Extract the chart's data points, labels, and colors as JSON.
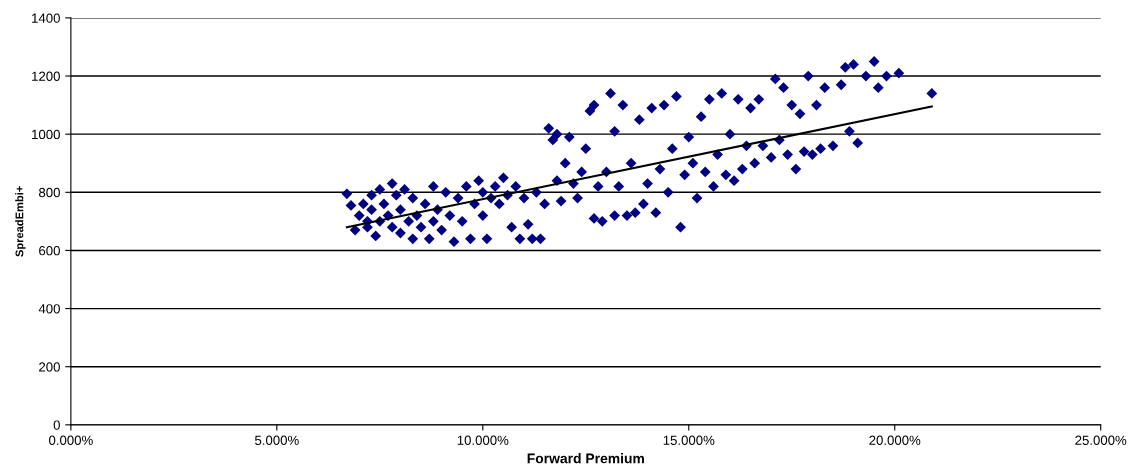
{
  "chart_data": {
    "type": "scatter",
    "xlabel": "Forward Premium",
    "ylabel": "SpreadEmbi+",
    "xlim": [
      0,
      0.25
    ],
    "xticks": [
      {
        "value": 0,
        "label": "0.000%"
      },
      {
        "value": 0.05,
        "label": "5.000%"
      },
      {
        "value": 0.1,
        "label": "10.000%"
      },
      {
        "value": 0.15,
        "label": "15.000%"
      },
      {
        "value": 0.2,
        "label": "20.000%"
      },
      {
        "value": 0.25,
        "label": "25.000%"
      }
    ],
    "ylim": [
      0,
      1400
    ],
    "yticks": [
      0,
      200,
      400,
      600,
      800,
      1000,
      1200,
      1400
    ],
    "grid": "y",
    "legend": false,
    "marker": "diamond",
    "series": [
      {
        "color": "#000080",
        "x": [
          0.067,
          0.068,
          0.069,
          0.07,
          0.071,
          0.072,
          0.072,
          0.073,
          0.073,
          0.074,
          0.075,
          0.075,
          0.076,
          0.077,
          0.078,
          0.078,
          0.079,
          0.08,
          0.08,
          0.081,
          0.082,
          0.083,
          0.083,
          0.084,
          0.085,
          0.086,
          0.087,
          0.088,
          0.088,
          0.089,
          0.09,
          0.091,
          0.092,
          0.093,
          0.094,
          0.095,
          0.096,
          0.097,
          0.098,
          0.099,
          0.1,
          0.1,
          0.101,
          0.102,
          0.103,
          0.104,
          0.105,
          0.106,
          0.107,
          0.108,
          0.109,
          0.11,
          0.111,
          0.112,
          0.113,
          0.114,
          0.115,
          0.116,
          0.117,
          0.118,
          0.118,
          0.119,
          0.12,
          0.121,
          0.122,
          0.123,
          0.124,
          0.125,
          0.126,
          0.127,
          0.127,
          0.128,
          0.129,
          0.13,
          0.131,
          0.132,
          0.132,
          0.133,
          0.134,
          0.135,
          0.136,
          0.137,
          0.138,
          0.139,
          0.14,
          0.141,
          0.142,
          0.143,
          0.144,
          0.145,
          0.146,
          0.147,
          0.148,
          0.149,
          0.15,
          0.151,
          0.152,
          0.153,
          0.154,
          0.155,
          0.156,
          0.157,
          0.158,
          0.159,
          0.16,
          0.161,
          0.162,
          0.163,
          0.164,
          0.165,
          0.166,
          0.167,
          0.168,
          0.17,
          0.171,
          0.172,
          0.173,
          0.174,
          0.175,
          0.176,
          0.177,
          0.178,
          0.179,
          0.18,
          0.181,
          0.182,
          0.183,
          0.185,
          0.187,
          0.188,
          0.189,
          0.19,
          0.191,
          0.193,
          0.195,
          0.196,
          0.198,
          0.201,
          0.209
        ],
        "values": [
          795,
          755,
          670,
          720,
          760,
          700,
          680,
          790,
          740,
          650,
          810,
          700,
          760,
          720,
          830,
          680,
          790,
          740,
          660,
          810,
          700,
          780,
          640,
          720,
          680,
          760,
          640,
          700,
          820,
          740,
          670,
          800,
          720,
          630,
          780,
          700,
          820,
          640,
          760,
          840,
          720,
          800,
          640,
          780,
          820,
          760,
          850,
          790,
          680,
          820,
          640,
          780,
          690,
          640,
          800,
          640,
          760,
          1020,
          980,
          1000,
          840,
          770,
          900,
          990,
          830,
          780,
          870,
          950,
          1080,
          710,
          1100,
          820,
          700,
          870,
          1140,
          720,
          1010,
          820,
          1100,
          720,
          900,
          730,
          1050,
          760,
          830,
          1090,
          730,
          880,
          1100,
          800,
          950,
          1130,
          680,
          860,
          990,
          900,
          780,
          1060,
          870,
          1120,
          820,
          930,
          1140,
          860,
          1000,
          840,
          1120,
          880,
          960,
          1090,
          900,
          1120,
          960,
          920,
          1190,
          980,
          1160,
          930,
          1100,
          880,
          1070,
          940,
          1200,
          930,
          1100,
          950,
          1160,
          960,
          1170,
          1230,
          1010,
          1240,
          970,
          1200,
          1250,
          1160,
          1200,
          1210,
          1140
        ]
      },
      {
        "type": "line",
        "color": "#000000",
        "marker": "none",
        "x": [
          0.067,
          0.209
        ],
        "values": [
          680,
          1095
        ]
      }
    ]
  }
}
